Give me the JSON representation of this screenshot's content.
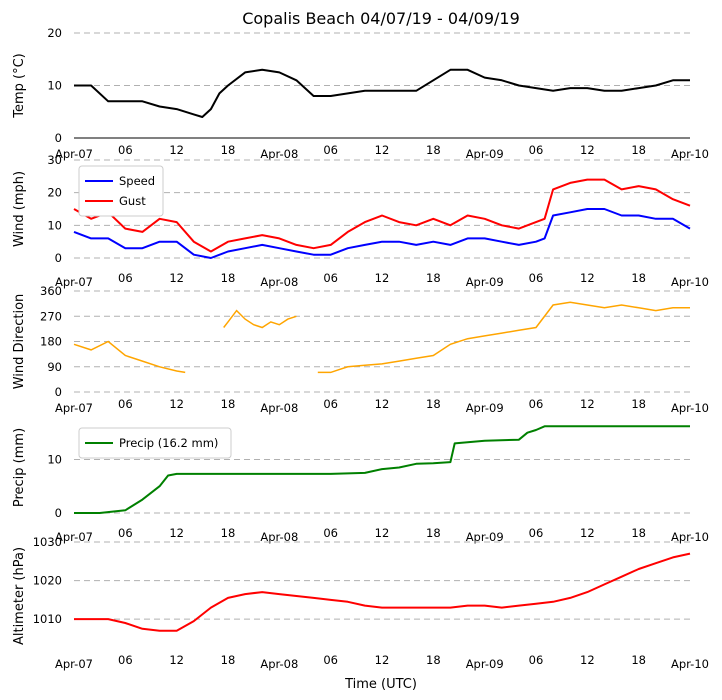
{
  "figure": {
    "title": "Copalis Beach 04/07/19 - 04/09/19",
    "xlabel": "Time (UTC)",
    "xticks": [
      "Apr-07",
      "06",
      "12",
      "18",
      "Apr-08",
      "06",
      "12",
      "18",
      "Apr-09",
      "06",
      "12",
      "18",
      "Apr-10"
    ]
  },
  "chart_data": [
    {
      "type": "line",
      "ylabel": "Temp (°C)",
      "ylim": [
        0,
        20
      ],
      "yticks": [
        0,
        10,
        20
      ],
      "grid": true,
      "x_hours": [
        0,
        2,
        4,
        6,
        8,
        10,
        12,
        14,
        15,
        16,
        17,
        18,
        20,
        22,
        24,
        26,
        28,
        30,
        32,
        34,
        36,
        38,
        40,
        42,
        44,
        46,
        48,
        50,
        52,
        54,
        56,
        58,
        60,
        62,
        64,
        66,
        68,
        70,
        72
      ],
      "series": [
        {
          "color": "#000000",
          "values": [
            10,
            10,
            7,
            7,
            7,
            6,
            5.5,
            4.5,
            4,
            5.5,
            8.5,
            10,
            12.5,
            13,
            12.5,
            11,
            8,
            8,
            8.5,
            9,
            9,
            9,
            9,
            11,
            13,
            13,
            11.5,
            11,
            10,
            9.5,
            9,
            9.5,
            9.5,
            9,
            9,
            9.5,
            10,
            11,
            11
          ]
        }
      ]
    },
    {
      "type": "line",
      "ylabel": "Wind (mph)",
      "ylim": [
        0,
        30
      ],
      "yticks": [
        0,
        10,
        20,
        30
      ],
      "grid": true,
      "legend": "top-left",
      "x_hours": [
        0,
        2,
        4,
        6,
        8,
        10,
        12,
        14,
        16,
        18,
        20,
        22,
        24,
        26,
        28,
        30,
        32,
        34,
        36,
        38,
        40,
        42,
        44,
        46,
        48,
        50,
        52,
        54,
        55,
        56,
        58,
        60,
        62,
        64,
        66,
        68,
        70,
        72
      ],
      "series": [
        {
          "name": "Speed",
          "color": "#0000ff",
          "values": [
            8,
            6,
            6,
            3,
            3,
            5,
            5,
            1,
            0,
            2,
            3,
            4,
            3,
            2,
            1,
            1,
            3,
            4,
            5,
            5,
            4,
            5,
            4,
            6,
            6,
            5,
            4,
            5,
            6,
            13,
            14,
            15,
            15,
            13,
            13,
            12,
            12,
            9
          ]
        },
        {
          "name": "Gust",
          "color": "#ff0000",
          "values": [
            15,
            12,
            14,
            9,
            8,
            12,
            11,
            5,
            2,
            5,
            6,
            7,
            6,
            4,
            3,
            4,
            8,
            11,
            13,
            11,
            10,
            12,
            10,
            13,
            12,
            10,
            9,
            11,
            12,
            21,
            23,
            24,
            24,
            21,
            22,
            21,
            18,
            16
          ]
        }
      ]
    },
    {
      "type": "line",
      "ylabel": "Wind Direction",
      "ylim": [
        0,
        360
      ],
      "yticks": [
        0,
        90,
        180,
        270,
        360
      ],
      "grid": true,
      "segments": [
        {
          "x_hours": [
            0,
            2,
            4,
            6,
            8,
            10,
            12,
            13
          ],
          "values": [
            170,
            150,
            180,
            130,
            110,
            90,
            75,
            70
          ]
        },
        {
          "x_hours": [
            17.5,
            18,
            19,
            20,
            21,
            22,
            23,
            24,
            25,
            26
          ],
          "values": [
            230,
            250,
            290,
            260,
            240,
            230,
            250,
            240,
            260,
            270
          ]
        },
        {
          "x_hours": [
            28.5,
            30,
            31,
            32,
            34,
            36,
            38,
            40,
            42,
            44,
            46,
            48,
            50,
            52,
            54,
            56,
            58,
            60,
            62,
            64,
            66,
            68,
            70,
            72
          ],
          "values": [
            70,
            70,
            80,
            90,
            95,
            100,
            110,
            120,
            130,
            170,
            190,
            200,
            210,
            220,
            230,
            310,
            320,
            310,
            300,
            310,
            300,
            290,
            300,
            300
          ]
        }
      ],
      "series": [
        {
          "color": "#ffa500"
        }
      ]
    },
    {
      "type": "line",
      "ylabel": "Precip (mm)",
      "ylim": [
        0,
        17
      ],
      "yticks": [
        0,
        10
      ],
      "grid": true,
      "legend": "top-left",
      "x_hours": [
        0,
        3,
        6,
        8,
        10,
        11,
        12,
        20,
        24,
        28,
        30,
        34,
        36,
        38,
        40,
        42,
        44,
        44.5,
        46,
        48,
        52,
        53,
        54,
        55,
        60,
        66,
        72
      ],
      "series": [
        {
          "name": "Precip (16.2 mm)",
          "color": "#008000",
          "values": [
            0,
            0,
            0.5,
            2.5,
            5,
            7,
            7.3,
            7.3,
            7.3,
            7.3,
            7.3,
            7.5,
            8.2,
            8.5,
            9.2,
            9.3,
            9.5,
            13,
            13.2,
            13.5,
            13.7,
            15,
            15.5,
            16.2,
            16.2,
            16.2,
            16.2
          ]
        }
      ]
    },
    {
      "type": "line",
      "ylabel": "Altimeter (hPa)",
      "ylim": [
        1002,
        1030
      ],
      "yticks": [
        1010,
        1020,
        1030
      ],
      "grid": true,
      "x_hours": [
        0,
        4,
        6,
        8,
        10,
        12,
        14,
        16,
        18,
        20,
        22,
        24,
        26,
        28,
        30,
        32,
        34,
        36,
        38,
        40,
        42,
        44,
        46,
        48,
        50,
        52,
        54,
        56,
        58,
        60,
        62,
        64,
        66,
        68,
        70,
        72
      ],
      "series": [
        {
          "color": "#ff0000",
          "values": [
            1010,
            1010,
            1009,
            1007.5,
            1007,
            1007,
            1009.5,
            1013,
            1015.5,
            1016.5,
            1017,
            1016.5,
            1016,
            1015.5,
            1015,
            1014.5,
            1013.5,
            1013,
            1013,
            1013,
            1013,
            1013,
            1013.5,
            1013.5,
            1013,
            1013.5,
            1014,
            1014.5,
            1015.5,
            1017,
            1019,
            1021,
            1023,
            1024.5,
            1026,
            1027
          ]
        }
      ]
    }
  ]
}
